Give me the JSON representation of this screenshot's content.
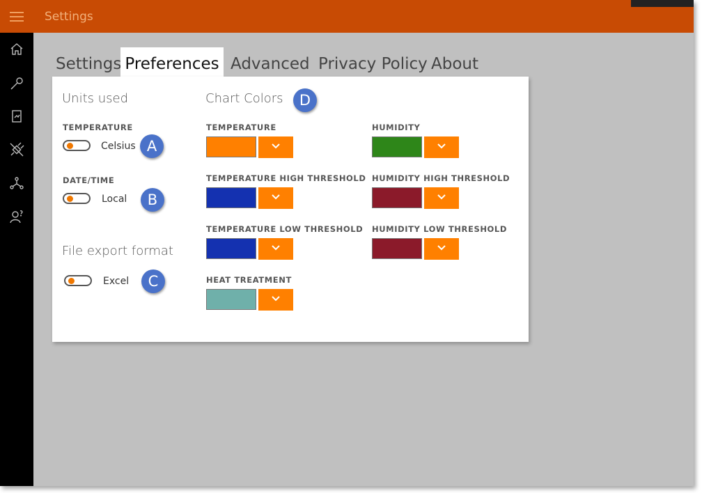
{
  "app": {
    "title": "Settings"
  },
  "tabs": [
    {
      "label": "Settings",
      "active": false
    },
    {
      "label": "Preferences",
      "active": true
    },
    {
      "label": "Advanced",
      "active": false
    },
    {
      "label": "Privacy Policy",
      "active": false
    },
    {
      "label": "About",
      "active": false
    }
  ],
  "units": {
    "heading": "Units used",
    "temperature": {
      "label": "TEMPERATURE",
      "value": "Celsius"
    },
    "datetime": {
      "label": "DATE/TIME",
      "value": "Local"
    }
  },
  "export": {
    "heading": "File export format",
    "value": "Excel"
  },
  "chart_colors": {
    "heading": "Chart Colors",
    "temperature": {
      "label": "TEMPERATURE",
      "color": "#ff8000"
    },
    "temperature_high": {
      "label": "TEMPERATURE HIGH THRESHOLD",
      "color": "#1431b0"
    },
    "temperature_low": {
      "label": "TEMPERATURE LOW THRESHOLD",
      "color": "#1431b0"
    },
    "heat_treatment": {
      "label": "HEAT TREATMENT",
      "color": "#6fb0aa"
    },
    "humidity": {
      "label": "HUMIDITY",
      "color": "#2e8619"
    },
    "humidity_high": {
      "label": "HUMIDITY HIGH THRESHOLD",
      "color": "#8b1a2a"
    },
    "humidity_low": {
      "label": "HUMIDITY LOW THRESHOLD",
      "color": "#8b1a2a"
    }
  },
  "callouts": {
    "a": "A",
    "b": "B",
    "c": "C",
    "d": "D"
  },
  "colors": {
    "accent": "#c84b04",
    "dropdown": "#ff8000",
    "badge": "#4a72c9"
  },
  "icons": [
    "hamburger-icon",
    "home-icon",
    "wrench-icon",
    "report-icon",
    "plug-icon",
    "network-icon",
    "user-help-icon",
    "chevron-down-icon"
  ]
}
